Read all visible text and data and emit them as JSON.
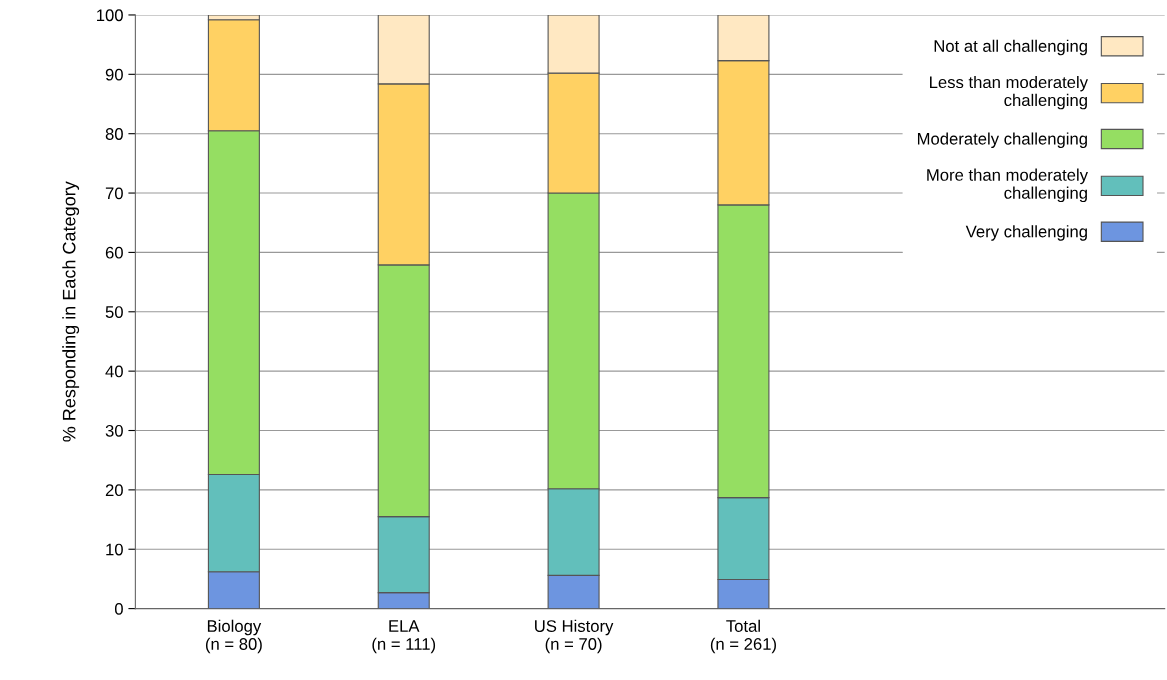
{
  "chart_data": {
    "type": "bar",
    "stacked": true,
    "ylabel": "% Responding in Each Category",
    "categories": [
      "Biology\n(n = 80)",
      "ELA\n(n = 111)",
      "US History\n(n = 70)",
      "Total\n(n = 261)"
    ],
    "series": [
      {
        "name": "Very challenging",
        "color": "#6d95e0",
        "values": [
          6.2,
          2.7,
          5.6,
          4.9
        ]
      },
      {
        "name": "More than moderately\nchallenging",
        "color": "#62bfbb",
        "values": [
          16.4,
          12.8,
          14.6,
          13.8
        ]
      },
      {
        "name": "Moderately challenging",
        "color": "#95de62",
        "values": [
          57.9,
          42.4,
          49.8,
          49.3
        ]
      },
      {
        "name": "Less than moderately\nchallenging",
        "color": "#ffd163",
        "values": [
          18.7,
          30.5,
          20.2,
          24.3
        ]
      },
      {
        "name": "Not at all challenging",
        "color": "#ffe8c2",
        "values": [
          0.8,
          11.6,
          9.8,
          7.7
        ]
      }
    ],
    "ylim": [
      0,
      100
    ],
    "yticks": [
      0,
      10,
      20,
      30,
      40,
      50,
      60,
      70,
      80,
      90,
      100
    ],
    "grid": "y",
    "legend": "top right"
  }
}
